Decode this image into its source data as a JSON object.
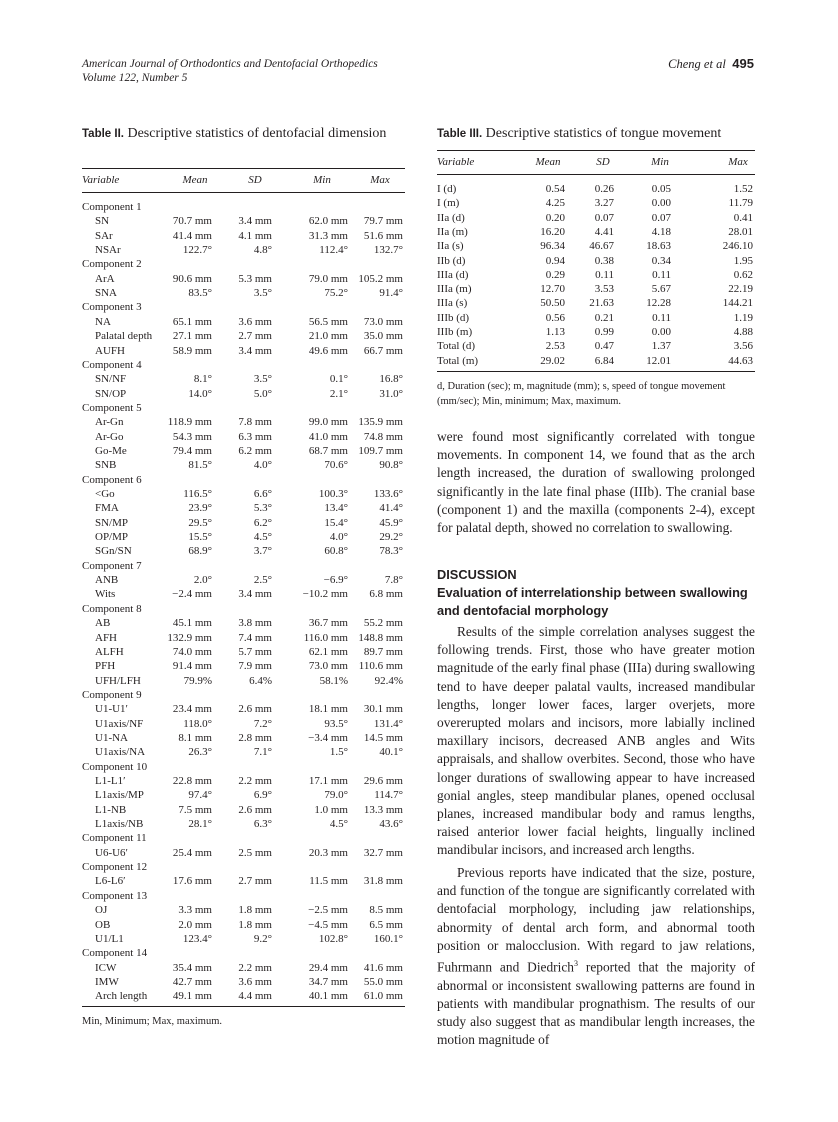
{
  "header": {
    "journal": "American Journal of Orthodontics and Dentofacial Orthopedics",
    "volume": "Volume 122, Number 5",
    "authors": "Cheng et al",
    "page": "495"
  },
  "table2": {
    "label": "Table II.",
    "caption": "Descriptive statistics of dentofacial dimension",
    "columns": [
      "Variable",
      "Mean",
      "SD",
      "Min",
      "Max"
    ],
    "rows": [
      [
        "Component 1"
      ],
      [
        "SN",
        "70.7 mm",
        "3.4 mm",
        "62.0 mm",
        "79.7 mm"
      ],
      [
        "SAr",
        "41.4 mm",
        "4.1 mm",
        "31.3 mm",
        "51.6 mm"
      ],
      [
        "NSAr",
        "122.7°",
        "4.8°",
        "112.4°",
        "132.7°"
      ],
      [
        "Component 2"
      ],
      [
        "ArA",
        "90.6 mm",
        "5.3 mm",
        "79.0 mm",
        "105.2 mm"
      ],
      [
        "SNA",
        "83.5°",
        "3.5°",
        "75.2°",
        "91.4°"
      ],
      [
        "Component 3"
      ],
      [
        "NA",
        "65.1 mm",
        "3.6 mm",
        "56.5 mm",
        "73.0 mm"
      ],
      [
        "Palatal depth",
        "27.1 mm",
        "2.7 mm",
        "21.0 mm",
        "35.0 mm"
      ],
      [
        "AUFH",
        "58.9 mm",
        "3.4 mm",
        "49.6 mm",
        "66.7 mm"
      ],
      [
        "Component 4"
      ],
      [
        "SN/NF",
        "8.1°",
        "3.5°",
        "0.1°",
        "16.8°"
      ],
      [
        "SN/OP",
        "14.0°",
        "5.0°",
        "2.1°",
        "31.0°"
      ],
      [
        "Component 5"
      ],
      [
        "Ar-Gn",
        "118.9 mm",
        "7.8 mm",
        "99.0 mm",
        "135.9 mm"
      ],
      [
        "Ar-Go",
        "54.3 mm",
        "6.3 mm",
        "41.0 mm",
        "74.8 mm"
      ],
      [
        "Go-Me",
        "79.4 mm",
        "6.2 mm",
        "68.7 mm",
        "109.7 mm"
      ],
      [
        "SNB",
        "81.5°",
        "4.0°",
        "70.6°",
        "90.8°"
      ],
      [
        "Component 6"
      ],
      [
        "<Go",
        "116.5°",
        "6.6°",
        "100.3°",
        "133.6°"
      ],
      [
        "FMA",
        "23.9°",
        "5.3°",
        "13.4°",
        "41.4°"
      ],
      [
        "SN/MP",
        "29.5°",
        "6.2°",
        "15.4°",
        "45.9°"
      ],
      [
        "OP/MP",
        "15.5°",
        "4.5°",
        "4.0°",
        "29.2°"
      ],
      [
        "SGn/SN",
        "68.9°",
        "3.7°",
        "60.8°",
        "78.3°"
      ],
      [
        "Component 7"
      ],
      [
        "ANB",
        "2.0°",
        "2.5°",
        "−6.9°",
        "7.8°"
      ],
      [
        "Wits",
        "−2.4 mm",
        "3.4 mm",
        "−10.2 mm",
        "6.8 mm"
      ],
      [
        "Component 8"
      ],
      [
        "AB",
        "45.1 mm",
        "3.8 mm",
        "36.7 mm",
        "55.2 mm"
      ],
      [
        "AFH",
        "132.9 mm",
        "7.4 mm",
        "116.0 mm",
        "148.8 mm"
      ],
      [
        "ALFH",
        "74.0 mm",
        "5.7 mm",
        "62.1 mm",
        "89.7 mm"
      ],
      [
        "PFH",
        "91.4 mm",
        "7.9 mm",
        "73.0 mm",
        "110.6 mm"
      ],
      [
        "UFH/LFH",
        "79.9%",
        "6.4%",
        "58.1%",
        "92.4%"
      ],
      [
        "Component 9"
      ],
      [
        "U1-U1′",
        "23.4 mm",
        "2.6 mm",
        "18.1 mm",
        "30.1 mm"
      ],
      [
        "U1axis/NF",
        "118.0°",
        "7.2°",
        "93.5°",
        "131.4°"
      ],
      [
        "U1-NA",
        "8.1 mm",
        "2.8 mm",
        "−3.4 mm",
        "14.5 mm"
      ],
      [
        "U1axis/NA",
        "26.3°",
        "7.1°",
        "1.5°",
        "40.1°"
      ],
      [
        "Component 10"
      ],
      [
        "L1-L1′",
        "22.8 mm",
        "2.2 mm",
        "17.1 mm",
        "29.6 mm"
      ],
      [
        "L1axis/MP",
        "97.4°",
        "6.9°",
        "79.0°",
        "114.7°"
      ],
      [
        "L1-NB",
        "7.5 mm",
        "2.6 mm",
        "1.0 mm",
        "13.3 mm"
      ],
      [
        "L1axis/NB",
        "28.1°",
        "6.3°",
        "4.5°",
        "43.6°"
      ],
      [
        "Component 11"
      ],
      [
        "U6-U6′",
        "25.4 mm",
        "2.5 mm",
        "20.3 mm",
        "32.7 mm"
      ],
      [
        "Component 12"
      ],
      [
        "L6-L6′",
        "17.6 mm",
        "2.7 mm",
        "11.5 mm",
        "31.8 mm"
      ],
      [
        "Component 13"
      ],
      [
        "OJ",
        "3.3 mm",
        "1.8 mm",
        "−2.5 mm",
        "8.5 mm"
      ],
      [
        "OB",
        "2.0 mm",
        "1.8 mm",
        "−4.5 mm",
        "6.5 mm"
      ],
      [
        "U1/L1",
        "123.4°",
        "9.2°",
        "102.8°",
        "160.1°"
      ],
      [
        "Component 14"
      ],
      [
        "ICW",
        "35.4 mm",
        "2.2 mm",
        "29.4 mm",
        "41.6 mm"
      ],
      [
        "IMW",
        "42.7 mm",
        "3.6 mm",
        "34.7 mm",
        "55.0 mm"
      ],
      [
        "Arch length",
        "49.1 mm",
        "4.4 mm",
        "40.1 mm",
        "61.0 mm"
      ]
    ],
    "footnote": "Min, Minimum; Max, maximum."
  },
  "table3": {
    "label": "Table III.",
    "caption": "Descriptive statistics of tongue movement",
    "columns": [
      "Variable",
      "Mean",
      "SD",
      "Min",
      "Max"
    ],
    "rows": [
      [
        "I (d)",
        "0.54",
        "0.26",
        "0.05",
        "1.52"
      ],
      [
        "I (m)",
        "4.25",
        "3.27",
        "0.00",
        "11.79"
      ],
      [
        "IIa (d)",
        "0.20",
        "0.07",
        "0.07",
        "0.41"
      ],
      [
        "IIa (m)",
        "16.20",
        "4.41",
        "4.18",
        "28.01"
      ],
      [
        "IIa (s)",
        "96.34",
        "46.67",
        "18.63",
        "246.10"
      ],
      [
        "IIb (d)",
        "0.94",
        "0.38",
        "0.34",
        "1.95"
      ],
      [
        "IIIa (d)",
        "0.29",
        "0.11",
        "0.11",
        "0.62"
      ],
      [
        "IIIa (m)",
        "12.70",
        "3.53",
        "5.67",
        "22.19"
      ],
      [
        "IIIa (s)",
        "50.50",
        "21.63",
        "12.28",
        "144.21"
      ],
      [
        "IIIb (d)",
        "0.56",
        "0.21",
        "0.11",
        "1.19"
      ],
      [
        "IIIb (m)",
        "1.13",
        "0.99",
        "0.00",
        "4.88"
      ],
      [
        "Total (d)",
        "2.53",
        "0.47",
        "1.37",
        "3.56"
      ],
      [
        "Total (m)",
        "29.02",
        "6.84",
        "12.01",
        "44.63"
      ]
    ],
    "footnote": "d, Duration (sec); m, magnitude (mm); s, speed of tongue movement (mm/sec); Min, minimum; Max, maximum."
  },
  "body": {
    "paragraph1": "were found most significantly correlated with tongue movements. In component 14, we found that as the arch length increased, the duration of swallowing prolonged significantly in the late final phase (IIIb). The cranial base (component 1) and the maxilla (components 2-4), except for palatal depth, showed no correlation to swallowing.",
    "heading": "DISCUSSION",
    "subheading": "Evaluation of interrelationship between swallowing and dentofacial morphology",
    "paragraph2": "Results of the simple correlation analyses suggest the following trends. First, those who have greater motion magnitude of the early final phase (IIIa) during swallowing tend to have deeper palatal vaults, increased mandibular lengths, longer lower faces, larger overjets, more overerupted molars and incisors, more labially inclined maxillary incisors, decreased ANB angles and Wits appraisals, and shallow overbites. Second, those who have longer durations of swallowing appear to have increased gonial angles, steep mandibular planes, opened occlusal planes, increased mandibular body and ramus lengths, raised anterior lower facial heights, lingually inclined mandibular incisors, and increased arch lengths.",
    "paragraph3": {
      "before": "Previous reports have indicated that the size, posture, and function of the tongue are significantly correlated with dentofacial morphology, including jaw relationships, abnormity of dental arch form, and abnormal tooth position or malocclusion. With regard to jaw relations, Fuhrmann and Diedrich",
      "sup": "3",
      "after": " reported that the majority of abnormal or inconsistent swallowing patterns are found in patients with mandibular prognathism. The results of our study also suggest that as mandibular length increases, the motion magnitude of"
    }
  }
}
